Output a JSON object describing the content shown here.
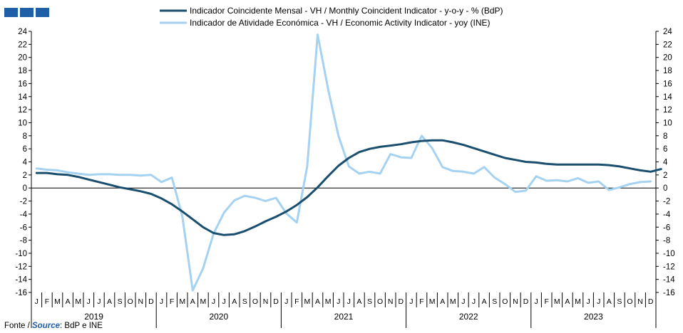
{
  "chart_data": {
    "type": "line",
    "title": "",
    "xlabel": "",
    "ylabel": "",
    "ylim": [
      -16,
      24
    ],
    "yticks": [
      24,
      22,
      20,
      18,
      16,
      14,
      12,
      10,
      8,
      6,
      4,
      2,
      0,
      -2,
      -4,
      -6,
      -8,
      -10,
      -12,
      -14,
      -16
    ],
    "secondary_y": true,
    "grid": false,
    "legend_position": "top-center",
    "month_labels": [
      "J",
      "F",
      "M",
      "A",
      "M",
      "J",
      "J",
      "A",
      "S",
      "O",
      "N",
      "D"
    ],
    "years": [
      "2019",
      "2020",
      "2021",
      "2022",
      "2023"
    ],
    "series": [
      {
        "name": "Indicador Coincidente Mensal - VH / Monthly Coincident Indicator - y-o-y - % (BdP)",
        "color": "#1a4e6e",
        "values": [
          2.3,
          2.3,
          2.1,
          2.0,
          1.7,
          1.3,
          0.9,
          0.5,
          0.1,
          -0.2,
          -0.5,
          -0.9,
          -1.6,
          -2.5,
          -3.6,
          -4.8,
          -6.0,
          -6.9,
          -7.2,
          -7.1,
          -6.6,
          -5.9,
          -5.1,
          -4.4,
          -3.6,
          -2.6,
          -1.4,
          0.1,
          1.8,
          3.4,
          4.6,
          5.5,
          6.0,
          6.3,
          6.5,
          6.7,
          7.0,
          7.2,
          7.3,
          7.3,
          7.0,
          6.6,
          6.1,
          5.6,
          5.1,
          4.6,
          4.3,
          4.0,
          3.9,
          3.7,
          3.6,
          3.6,
          3.6,
          3.6,
          3.6,
          3.5,
          3.3,
          3.0,
          2.7,
          2.5,
          2.9
        ]
      },
      {
        "name": "Indicador de Atividade Económica - VH / Economic Activity Indicator - yoy (INE)",
        "color": "#a6d2f2",
        "values": [
          3.0,
          2.8,
          2.7,
          2.4,
          2.2,
          2.0,
          2.1,
          2.1,
          2.0,
          2.0,
          1.9,
          2.0,
          0.9,
          1.6,
          -4.3,
          -15.7,
          -12.3,
          -7.0,
          -3.8,
          -1.9,
          -1.2,
          -1.5,
          -2.0,
          -1.5,
          -3.9,
          -5.3,
          3.3,
          23.5,
          15.2,
          8.0,
          3.3,
          2.2,
          2.5,
          2.2,
          5.2,
          4.7,
          4.6,
          8.0,
          6.1,
          3.2,
          2.6,
          2.5,
          2.2,
          3.2,
          1.6,
          0.6,
          -0.6,
          -0.4,
          1.8,
          1.1,
          1.2,
          1.0,
          1.5,
          0.8,
          1.0,
          -0.3,
          0.1,
          0.6,
          0.9,
          1.0
        ]
      }
    ]
  },
  "footer": {
    "prefix": "Fonte /",
    "source_label": "Source",
    "suffix": ": BdP e INE"
  },
  "header": {
    "logo_color": "#1f5fa8",
    "logo_squares": 3
  }
}
